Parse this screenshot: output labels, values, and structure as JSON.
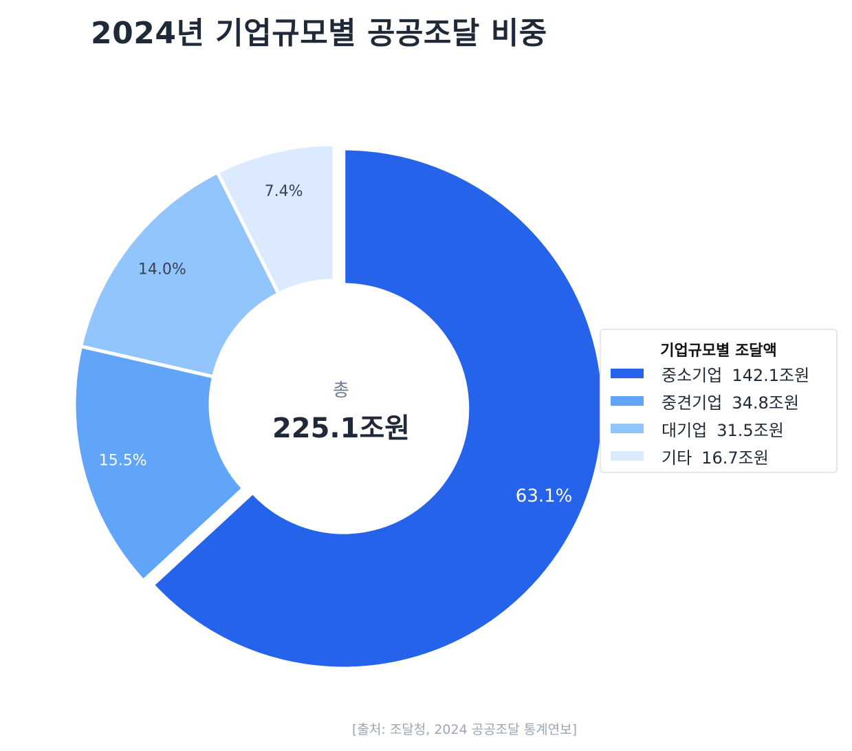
{
  "title": "2024년 기업규모별 공공조달 비중",
  "center": {
    "label": "총",
    "total": "225.1조원"
  },
  "legend": {
    "title": "기업규모별 조달액",
    "placement": "right"
  },
  "source": "[출처: 조달청, 2024 공공조달 통계연보]",
  "colors": {
    "title": "#1f2937",
    "center_label": "#6b7b93",
    "center_total": "#1f2937",
    "label_light": "#ffffff",
    "label_dark": "#374151"
  },
  "chart_data": {
    "type": "pie",
    "donut": true,
    "unit": "조원",
    "slices": [
      {
        "name": "중소기업",
        "value": 142.1,
        "value_label": "142.1조원",
        "percent_label": "63.1%",
        "color": "#2563eb",
        "label_tone": "light",
        "exploded": true
      },
      {
        "name": "중견기업",
        "value": 34.8,
        "value_label": "34.8조원",
        "percent_label": "15.5%",
        "color": "#60a5fa",
        "label_tone": "light",
        "exploded": false
      },
      {
        "name": "대기업",
        "value": 31.5,
        "value_label": "31.5조원",
        "percent_label": "14.0%",
        "color": "#93c5fd",
        "label_tone": "dark",
        "exploded": false
      },
      {
        "name": "기타",
        "value": 16.7,
        "value_label": "16.7조원",
        "percent_label": "7.4%",
        "color": "#dbeafe",
        "label_tone": "dark",
        "exploded": false
      }
    ]
  }
}
